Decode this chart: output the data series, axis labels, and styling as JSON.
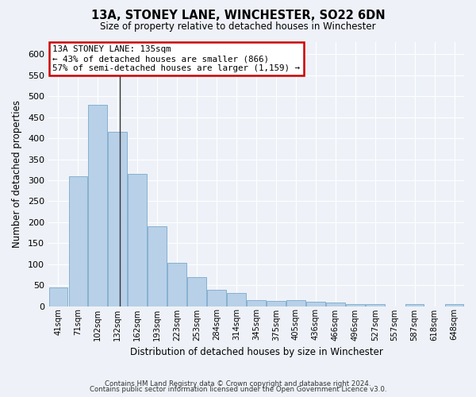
{
  "title": "13A, STONEY LANE, WINCHESTER, SO22 6DN",
  "subtitle": "Size of property relative to detached houses in Winchester",
  "xlabel": "Distribution of detached houses by size in Winchester",
  "ylabel": "Number of detached properties",
  "categories": [
    "41sqm",
    "71sqm",
    "102sqm",
    "132sqm",
    "162sqm",
    "193sqm",
    "223sqm",
    "253sqm",
    "284sqm",
    "314sqm",
    "345sqm",
    "375sqm",
    "405sqm",
    "436sqm",
    "466sqm",
    "496sqm",
    "527sqm",
    "557sqm",
    "587sqm",
    "618sqm",
    "648sqm"
  ],
  "values": [
    45,
    310,
    480,
    415,
    315,
    190,
    103,
    70,
    38,
    32,
    15,
    12,
    15,
    10,
    8,
    5,
    5,
    0,
    4,
    0,
    4
  ],
  "bar_color": "#b8d0e8",
  "bar_edge_color": "#7aaaca",
  "vline_x": 3.1,
  "vline_color": "#333333",
  "annotation_text": "13A STONEY LANE: 135sqm\n← 43% of detached houses are smaller (866)\n57% of semi-detached houses are larger (1,159) →",
  "annotation_box_color": "#ffffff",
  "annotation_box_edge": "#cc0000",
  "ylim": [
    0,
    630
  ],
  "yticks": [
    0,
    50,
    100,
    150,
    200,
    250,
    300,
    350,
    400,
    450,
    500,
    550,
    600
  ],
  "background_color": "#eef2f8",
  "grid_color": "#ffffff",
  "footer_line1": "Contains HM Land Registry data © Crown copyright and database right 2024.",
  "footer_line2": "Contains public sector information licensed under the Open Government Licence v3.0."
}
